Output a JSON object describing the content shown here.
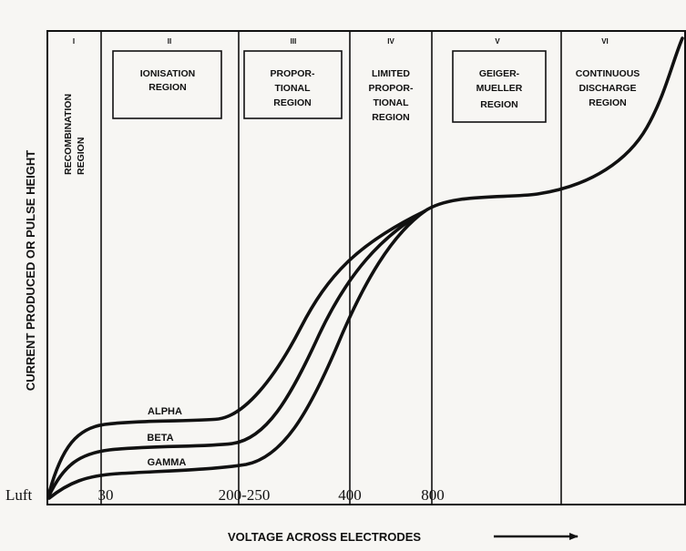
{
  "diagram": {
    "regions": [
      {
        "numeral": "I",
        "lines": [
          "RECOMBINATION",
          "REGION"
        ],
        "vertical": true,
        "boxed": false
      },
      {
        "numeral": "II",
        "lines": [
          "IONISATION",
          "REGION"
        ],
        "vertical": false,
        "boxed": true
      },
      {
        "numeral": "III",
        "lines": [
          "PROPOR-",
          "TIONAL",
          "REGION"
        ],
        "vertical": false,
        "boxed": true
      },
      {
        "numeral": "IV",
        "lines": [
          "LIMITED",
          "PROPOR-",
          "TIONAL",
          "REGION"
        ],
        "vertical": false,
        "boxed": false
      },
      {
        "numeral": "V",
        "lines": [
          "GEIGER-",
          "MUELLER",
          "REGION"
        ],
        "vertical": false,
        "boxed": true
      },
      {
        "numeral": "VI",
        "lines": [
          "CONTINUOUS",
          "DISCHARGE",
          "REGION"
        ],
        "vertical": false,
        "boxed": false
      }
    ],
    "curves": [
      {
        "label": "ALPHA"
      },
      {
        "label": "BETA"
      },
      {
        "label": "GAMMA"
      }
    ],
    "tick_labels": [
      "Luft",
      "30",
      "200-250",
      "400",
      "800"
    ],
    "y_axis_label": "CURRENT PRODUCED OR PULSE HEIGHT",
    "x_axis_label": "VOLTAGE ACROSS ELECTRODES"
  }
}
